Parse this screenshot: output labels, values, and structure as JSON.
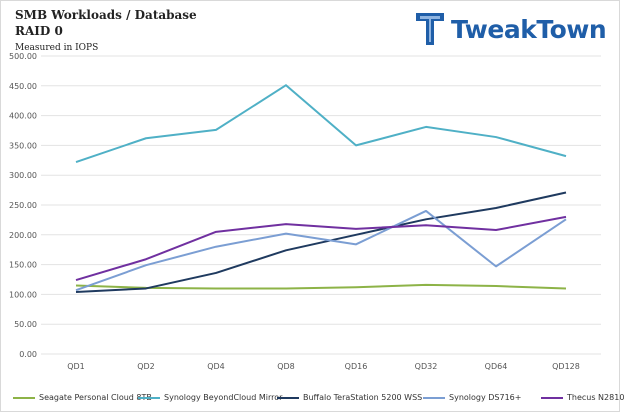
{
  "header": {
    "title": "SMB Workloads / Database",
    "subtitle": "RAID 0",
    "measure": "Measured in IOPS"
  },
  "logo": {
    "name": "TweakTown",
    "icon": "tweaktown-logo-icon",
    "color": "#1f5ea8"
  },
  "chart_data": {
    "type": "line",
    "categories": [
      "QD1",
      "QD2",
      "QD4",
      "QD8",
      "QD16",
      "QD32",
      "QD64",
      "QD128"
    ],
    "y_ticks": [
      "0.00",
      "50.00",
      "100.00",
      "150.00",
      "200.00",
      "250.00",
      "300.00",
      "350.00",
      "400.00",
      "450.00",
      "500.00"
    ],
    "ylim": [
      0,
      500
    ],
    "grid": true,
    "legend_position": "bottom",
    "series": [
      {
        "name": "Seagate Personal Cloud 8TB",
        "color": "#8db347",
        "values": [
          115,
          111,
          110,
          110,
          112,
          116,
          114,
          110
        ]
      },
      {
        "name": "Synology BeyondCloud Mirror",
        "color": "#4fb0c6",
        "values": [
          322,
          362,
          376,
          451,
          350,
          381,
          364,
          332
        ]
      },
      {
        "name": "Buffalo TeraStation 5200 WSS",
        "color": "#1f3a5f",
        "values": [
          104,
          110,
          136,
          174,
          200,
          226,
          245,
          271
        ]
      },
      {
        "name": "Synology DS716+",
        "color": "#7b9ed3",
        "values": [
          107,
          149,
          180,
          202,
          184,
          240,
          147,
          226
        ]
      },
      {
        "name": "Thecus N2810",
        "color": "#7030a0",
        "values": [
          124,
          159,
          205,
          218,
          210,
          216,
          208,
          230
        ]
      }
    ]
  }
}
